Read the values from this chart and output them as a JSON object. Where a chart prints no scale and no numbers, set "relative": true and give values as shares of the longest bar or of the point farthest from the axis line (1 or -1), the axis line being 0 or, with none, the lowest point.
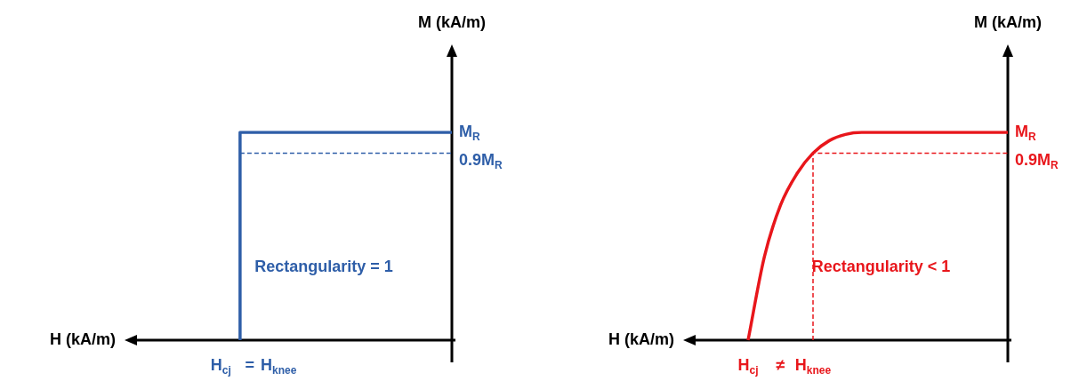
{
  "chart_data": [
    {
      "type": "line",
      "relative": true,
      "xlabel": "H (kA/m)",
      "ylabel": "M (kA/m)",
      "legend": false,
      "marker": "none",
      "categories": [
        null,
        null,
        null,
        null,
        null,
        null,
        null,
        null,
        null,
        null,
        "H$_{cj}$",
        null,
        null,
        "=",
        null,
        null,
        "H$_{knee}$",
        null,
        null,
        null,
        null,
        null,
        null,
        null,
        null,
        null,
        null,
        null,
        null,
        null,
        null,
        null,
        null,
        null,
        null
      ],
      "series": [
        {
          "type": "step",
          "color": "#2e5ea8",
          "values": [
            null,
            null,
            null,
            null,
            null,
            null,
            null,
            null,
            null,
            null,
            null,
            null,
            0,
            1,
            1,
            1,
            1,
            1,
            1,
            1,
            1,
            1,
            1,
            1,
            1,
            1,
            1,
            1,
            1,
            1,
            1,
            1,
            1,
            1,
            1
          ],
          "line_style": "solid"
        },
        {
          "color": "#2e5ea8",
          "values": [
            null,
            null,
            null,
            null,
            null,
            null,
            null,
            null,
            null,
            null,
            null,
            null,
            0.9,
            0.9,
            0.9,
            0.9,
            0.9,
            0.9,
            0.9,
            0.9,
            0.9,
            0.9,
            0.9,
            0.9,
            0.9,
            0.9,
            0.9,
            0.9,
            0.9,
            0.9,
            0.9,
            0.9,
            0.9,
            0.9,
            0.9
          ],
          "line_style": "dashed"
        }
      ],
      "annotations": [
        "M$_{R}$",
        "0.9M$_{R}$",
        "Rectangularity = 1"
      ]
    },
    {
      "type": "line",
      "relative": true,
      "xlabel": "H (kA/m)",
      "ylabel": "M (kA/m)",
      "legend": false,
      "marker": "none",
      "categories": [
        null,
        null,
        null,
        null,
        "H$_{cj}$",
        null,
        "≠",
        null,
        "H$_{knee}$",
        null,
        null,
        null,
        null,
        null,
        null,
        null,
        null,
        null,
        null,
        null,
        null
      ],
      "series": [
        {
          "color": "#e8161b",
          "values": [
            null,
            null,
            null,
            null,
            0,
            0.4,
            0.65,
            0.8,
            0.9,
            0.96,
            0.99,
            1,
            1,
            1,
            1,
            1,
            1,
            1,
            1,
            1,
            1
          ],
          "line_style": "solid"
        },
        {
          "type": "step",
          "color": "#e8161b",
          "values": [
            null,
            null,
            null,
            null,
            null,
            null,
            null,
            null,
            0,
            0.9,
            0.9,
            0.9,
            0.9,
            0.9,
            0.9,
            0.9,
            0.9,
            0.9,
            0.9,
            0.9,
            0.9
          ],
          "line_style": "dashed"
        }
      ],
      "annotations": [
        "M$_{R}$",
        "0.9M$_{R}$",
        "Rectangularity < 1"
      ]
    }
  ]
}
